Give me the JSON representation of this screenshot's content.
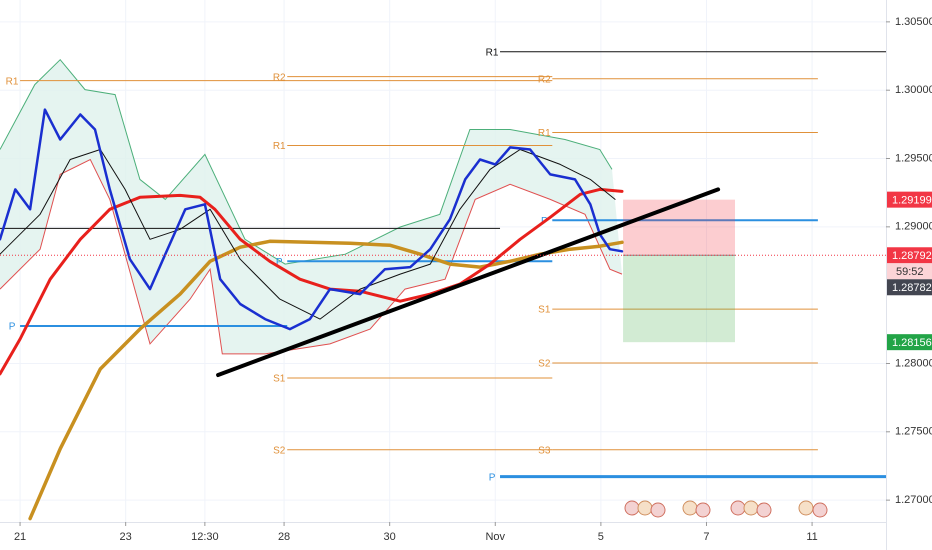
{
  "chart_data": {
    "type": "line",
    "xlim": [
      -0.38,
      16.4
    ],
    "ylim": [
      1.2684,
      1.3066
    ],
    "grid": true,
    "xticks": [
      {
        "value": 0,
        "label": "21"
      },
      {
        "value": 2,
        "label": "23"
      },
      {
        "value": 3.5,
        "label": "12:30"
      },
      {
        "value": 5,
        "label": "28"
      },
      {
        "value": 7,
        "label": "30"
      },
      {
        "value": 9,
        "label": "Nov"
      },
      {
        "value": 11,
        "label": "5"
      },
      {
        "value": 13,
        "label": "7"
      },
      {
        "value": 15,
        "label": "11"
      }
    ],
    "yticks": [
      {
        "value": 1.27,
        "label": "1.27000"
      },
      {
        "value": 1.275,
        "label": "1.27500"
      },
      {
        "value": 1.28,
        "label": "1.28000"
      },
      {
        "value": 1.29,
        "label": "1.29000"
      },
      {
        "value": 1.295,
        "label": "1.29500"
      },
      {
        "value": 1.3,
        "label": "1.30000"
      },
      {
        "value": 1.305,
        "label": "1.30500"
      }
    ],
    "band": {
      "color": "#dff1ec",
      "upper": {
        "color": "#4caf7a",
        "x": [
          -0.38,
          0.28,
          0.76,
          1.23,
          1.8,
          2.27,
          2.75,
          3.5,
          4.26,
          5.02,
          6.16,
          7.2,
          7.95,
          8.52,
          9.28,
          10.32,
          10.98,
          11.21
        ],
        "values": [
          1.29566,
          1.30041,
          1.30223,
          1.30004,
          1.29968,
          1.29347,
          1.29201,
          1.2953,
          1.28909,
          1.28727,
          1.288,
          1.28999,
          1.29092,
          1.29712,
          1.29712,
          1.29639,
          1.29566,
          1.2942
        ]
      },
      "lower": {
        "color": "#e05050",
        "x": [
          -0.38,
          0.38,
          0.76,
          1.33,
          1.7,
          2.46,
          3.22,
          3.6,
          3.83,
          4.64,
          5.87,
          6.63,
          7.29,
          8.05,
          8.62,
          9.28,
          10.04,
          10.7,
          11.17,
          11.4
        ],
        "values": [
          1.28544,
          1.28836,
          1.29384,
          1.29493,
          1.29201,
          1.28143,
          1.28471,
          1.2869,
          1.2807,
          1.2807,
          1.28143,
          1.28252,
          1.28544,
          1.28617,
          1.29201,
          1.29311,
          1.29201,
          1.29092,
          1.2869,
          1.28654
        ]
      }
    },
    "series": [
      {
        "color": "#c89020",
        "width": 3.5,
        "x": [
          0.19,
          0.76,
          1.52,
          2.27,
          3.03,
          3.6,
          4.17,
          4.73,
          5.49,
          6.25,
          7.01,
          7.58,
          8.14,
          8.71,
          9.28,
          9.85,
          10.42,
          10.98,
          11.4
        ],
        "values": [
          1.26865,
          1.27376,
          1.2796,
          1.28252,
          1.28508,
          1.28748,
          1.28851,
          1.28894,
          1.28887,
          1.2888,
          1.28865,
          1.288,
          1.28727,
          1.28705,
          1.28748,
          1.288,
          1.28836,
          1.28858,
          1.28887
        ]
      },
      {
        "color": "#e8201c",
        "width": 3,
        "x": [
          -0.38,
          0,
          0.57,
          1.14,
          1.7,
          2.27,
          3.03,
          3.41,
          3.69,
          4.17,
          4.73,
          5.3,
          5.87,
          6.44,
          7.2,
          7.77,
          8.33,
          8.9,
          9.47,
          10.04,
          10.61,
          10.98,
          11.4
        ],
        "values": [
          1.27924,
          1.28179,
          1.28617,
          1.28909,
          1.29128,
          1.29216,
          1.2923,
          1.29216,
          1.29128,
          1.28909,
          1.28748,
          1.28617,
          1.28544,
          1.28529,
          1.28456,
          1.28508,
          1.28581,
          1.28727,
          1.28909,
          1.2907,
          1.29238,
          1.29274,
          1.29259
        ]
      },
      {
        "color": "#111111",
        "width": 1,
        "x": [
          -0.38,
          0.38,
          0.95,
          1.52,
          1.99,
          2.46,
          3.03,
          3.6,
          4.17,
          4.92,
          5.68,
          6.44,
          7.2,
          7.77,
          8.33,
          8.9,
          9.47,
          10.23,
          10.8,
          11.27
        ],
        "values": [
          1.288,
          1.29092,
          1.29493,
          1.29566,
          1.29274,
          1.28909,
          1.28982,
          1.29128,
          1.28763,
          1.28471,
          1.28325,
          1.28544,
          1.28654,
          1.28727,
          1.29128,
          1.2942,
          1.29566,
          1.29457,
          1.29347,
          1.29201
        ]
      },
      {
        "color": "#1a2fd0",
        "width": 2.5,
        "x": [
          -0.38,
          -0.09,
          0.19,
          0.47,
          0.76,
          1.14,
          1.42,
          1.7,
          2.08,
          2.46,
          2.75,
          3.13,
          3.5,
          3.79,
          4.17,
          4.64,
          5.11,
          5.49,
          5.87,
          6.44,
          6.91,
          7.39,
          7.77,
          8.14,
          8.43,
          8.71,
          9.0,
          9.28,
          9.66,
          10.04,
          10.51,
          10.8,
          10.98,
          11.17,
          11.4
        ],
        "values": [
          1.28909,
          1.29274,
          1.29128,
          1.29858,
          1.29639,
          1.29822,
          1.29712,
          1.29274,
          1.28763,
          1.28544,
          1.288,
          1.29128,
          1.29165,
          1.28617,
          1.28435,
          1.28325,
          1.28252,
          1.28325,
          1.28544,
          1.28508,
          1.2869,
          1.28705,
          1.28836,
          1.29055,
          1.29347,
          1.29493,
          1.29457,
          1.29581,
          1.29566,
          1.29384,
          1.29347,
          1.29165,
          1.28946,
          1.28836,
          1.28821
        ]
      }
    ],
    "hlines": [
      {
        "value": 1.28989,
        "x": [
          -0.38,
          9.09
        ],
        "color": "#111111",
        "width": 1
      }
    ],
    "levels": [
      {
        "label": "R1",
        "value": 1.3007,
        "x": [
          0,
          10.08
        ],
        "color": "#e0913a",
        "width": 1
      },
      {
        "label": "P",
        "value": 1.28274,
        "x": [
          0,
          5.06
        ],
        "color": "#2b8fe0",
        "width": 2
      },
      {
        "label": "R2",
        "value": 1.30099,
        "x": [
          5.06,
          10.08
        ],
        "color": "#e0913a",
        "width": 1
      },
      {
        "label": "R1",
        "value": 1.29595,
        "x": [
          5.06,
          10.08
        ],
        "color": "#e0913a",
        "width": 1
      },
      {
        "label": "P",
        "value": 1.28748,
        "x": [
          5.06,
          10.08
        ],
        "color": "#2b8fe0",
        "width": 2
      },
      {
        "label": "S1",
        "value": 1.27894,
        "x": [
          5.06,
          10.08
        ],
        "color": "#e0913a",
        "width": 1
      },
      {
        "label": "S2",
        "value": 1.27369,
        "x": [
          5.06,
          10.08
        ],
        "color": "#e0913a",
        "width": 1
      },
      {
        "label": "S3",
        "value": 1.27369,
        "x": [
          10.08,
          15.11
        ],
        "color": "#e0913a",
        "width": 1
      },
      {
        "label": "R2",
        "value": 1.30084,
        "x": [
          10.08,
          15.11
        ],
        "color": "#e0913a",
        "width": 1
      },
      {
        "label": "R1",
        "value": 1.2969,
        "x": [
          10.08,
          15.11
        ],
        "color": "#e0913a",
        "width": 1
      },
      {
        "label": "P",
        "value": 1.29048,
        "x": [
          10.08,
          15.11
        ],
        "color": "#2b8fe0",
        "width": 2
      },
      {
        "label": "S1",
        "value": 1.28398,
        "x": [
          10.08,
          15.11
        ],
        "color": "#e0913a",
        "width": 1
      },
      {
        "label": "S2",
        "value": 1.28004,
        "x": [
          10.08,
          15.11
        ],
        "color": "#e0913a",
        "width": 1
      },
      {
        "label": "R1",
        "value": 1.30281,
        "x": [
          9.09,
          16.4
        ],
        "color": "#111111",
        "width": 1
      },
      {
        "label": "P",
        "value": 1.27172,
        "x": [
          9.09,
          16.4
        ],
        "color": "#2b8fe0",
        "width": 3
      }
    ],
    "trendline": {
      "x": [
        3.75,
        13.22
      ],
      "values": [
        1.27916,
        1.29274
      ],
      "color": "#000000",
      "width": 4
    },
    "position": {
      "x": [
        11.42,
        13.54
      ],
      "stop": 1.29199,
      "entry": 1.28792,
      "target": 1.28156,
      "stop_color": "rgba(242,54,69,0.25)",
      "target_color": "rgba(76,175,80,0.25)"
    },
    "price_tags": [
      {
        "value": 1.29199,
        "label": "1.29199",
        "color": "#f23645"
      },
      {
        "value": 1.28792,
        "label": "1.28792",
        "color": "#f23645",
        "countdown": "59:52"
      },
      {
        "value": 1.28782,
        "label": "1.28782",
        "color": "#434651"
      },
      {
        "value": 1.28156,
        "label": "1.28156",
        "color": "#22a447"
      }
    ]
  }
}
